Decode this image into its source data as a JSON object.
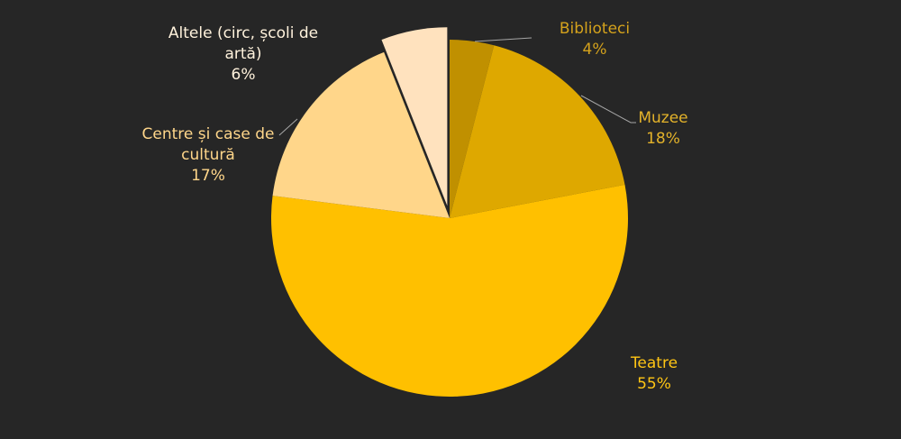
{
  "chart_data": {
    "type": "pie",
    "title": "",
    "slices": [
      {
        "label": "Biblioteci",
        "value": 4,
        "value_label": "4%",
        "color": "#C09000",
        "label_color": "#D4A21C",
        "exploded": false
      },
      {
        "label": "Muzee",
        "value": 18,
        "value_label": "18%",
        "color": "#DEA800",
        "label_color": "#E3B22A",
        "exploded": false
      },
      {
        "label": "Teatre",
        "value": 55,
        "value_label": "55%",
        "color": "#FFC000",
        "label_color": "#FFC514",
        "exploded": false
      },
      {
        "label": "Centre și case de cultură",
        "value": 17,
        "value_label": "17%",
        "color": "#FFD68A",
        "label_color": "#FFD68A",
        "exploded": false
      },
      {
        "label": "Altele (circ, școli de artă)",
        "value": 6,
        "value_label": "6%",
        "color": "#FFE2BE",
        "label_color": "#FFF2DC",
        "exploded": true
      }
    ],
    "start_angle_deg": 0,
    "direction": "clockwise",
    "legend": "none",
    "background": "#262626",
    "leader_line_color": "#A6A6A6"
  }
}
